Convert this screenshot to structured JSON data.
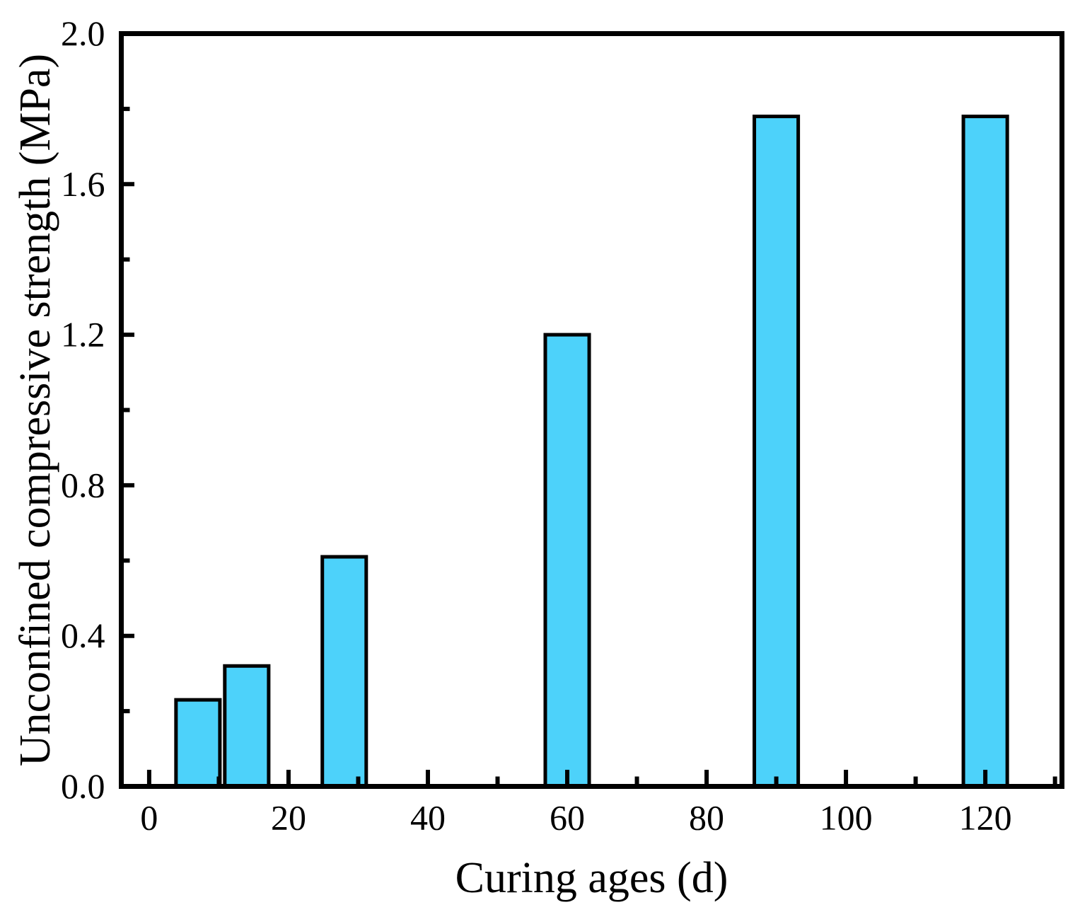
{
  "figure": {
    "background": "#ffffff"
  },
  "chart_data": {
    "type": "bar",
    "title": "",
    "xlabel": "Curing ages (d)",
    "ylabel": "Unconfined compressive strength (MPa)",
    "x": [
      7,
      14,
      28,
      60,
      90,
      120
    ],
    "values": [
      0.23,
      0.32,
      0.61,
      1.2,
      1.78,
      1.78
    ],
    "bar_width_units": 6.3,
    "xlim": [
      -4,
      131
    ],
    "ylim": [
      0,
      2
    ],
    "x_major_ticks": [
      0,
      20,
      40,
      60,
      80,
      100,
      120
    ],
    "x_tick_labels": [
      "0",
      "20",
      "40",
      "60",
      "80",
      "100",
      "120"
    ],
    "x_minor_ticks": [
      10,
      30,
      50,
      70,
      90,
      110,
      130
    ],
    "y_major_ticks": [
      0,
      0.4,
      0.8,
      1.2,
      1.6,
      2.0
    ],
    "y_tick_labels": [
      "0.0",
      "0.4",
      "0.8",
      "1.2",
      "1.6",
      "2.0"
    ],
    "y_minor_ticks": [
      0.2,
      0.6,
      1.0,
      1.4,
      1.8
    ],
    "grid": false,
    "legend": null,
    "tick_style": "inward, left and bottom axes only, drawn over bars",
    "colors": {
      "bar_fill": "#4DD2FA",
      "bar_stroke": "#000000",
      "axis": "#000000",
      "text": "#000000",
      "background": "#ffffff"
    }
  }
}
